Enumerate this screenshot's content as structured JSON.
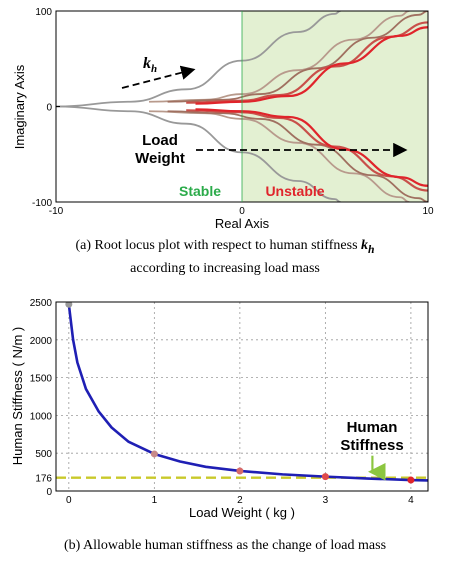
{
  "chart_data": [
    {
      "type": "line",
      "title": "",
      "xlabel": "Real Axis",
      "ylabel": "Imaginary Axis",
      "xlim": [
        -10,
        10
      ],
      "ylim": [
        -100,
        100
      ],
      "x_ticks": [
        "-10",
        "0",
        "10"
      ],
      "y_ticks": [
        "100",
        "0",
        "-100"
      ],
      "regions": [
        {
          "name": "Stable",
          "x_range": [
            -10,
            0
          ],
          "color": "#2bab4a"
        },
        {
          "name": "Unstable",
          "x_range": [
            0,
            10
          ],
          "color": "#e0242b",
          "fill": "#e3f0d2"
        }
      ],
      "annotations": [
        {
          "text": "k",
          "subscript": "h",
          "arrow": "right-up"
        },
        {
          "text_line1": "Load",
          "text_line2": "Weight",
          "arrow": "right"
        }
      ],
      "series": [
        {
          "color": "#999999",
          "points": [
            [
              -10,
              0
            ],
            [
              -6,
              5
            ],
            [
              -3,
              18
            ],
            [
              0,
              48
            ],
            [
              3,
              78
            ],
            [
              5,
              97
            ],
            [
              5.3,
              100
            ]
          ]
        },
        {
          "color": "#999999",
          "points": [
            [
              -10,
              0
            ],
            [
              -6,
              -5
            ],
            [
              -3,
              -18
            ],
            [
              0,
              -48
            ],
            [
              3,
              -78
            ],
            [
              5,
              -97
            ],
            [
              5.3,
              -100
            ]
          ]
        },
        {
          "color": "#b89a8c",
          "points": [
            [
              -5,
              5
            ],
            [
              -2,
              7
            ],
            [
              0,
              13
            ],
            [
              3,
              38
            ],
            [
              6,
              70
            ],
            [
              8.5,
              95
            ],
            [
              9,
              100
            ]
          ]
        },
        {
          "color": "#b89a8c",
          "points": [
            [
              -5,
              -5
            ],
            [
              -2,
              -7
            ],
            [
              0,
              -13
            ],
            [
              3,
              -38
            ],
            [
              6,
              -70
            ],
            [
              8.5,
              -95
            ],
            [
              9,
              -100
            ]
          ]
        },
        {
          "color": "#a07060",
          "points": [
            [
              -4,
              5
            ],
            [
              -1,
              7
            ],
            [
              1,
              13
            ],
            [
              4,
              40
            ],
            [
              7,
              72
            ],
            [
              9.5,
              96
            ],
            [
              10,
              100
            ]
          ]
        },
        {
          "color": "#a07060",
          "points": [
            [
              -4,
              -5
            ],
            [
              -1,
              -7
            ],
            [
              1,
              -13
            ],
            [
              4,
              -40
            ],
            [
              7,
              -72
            ],
            [
              9.5,
              -96
            ],
            [
              10,
              -100
            ]
          ]
        },
        {
          "color": "#c8504a",
          "points": [
            [
              -3,
              4
            ],
            [
              0,
              6
            ],
            [
              2,
              12
            ],
            [
              5,
              42
            ],
            [
              8,
              73
            ],
            [
              10,
              88
            ]
          ]
        },
        {
          "color": "#c8504a",
          "points": [
            [
              -3,
              -4
            ],
            [
              0,
              -6
            ],
            [
              2,
              -12
            ],
            [
              5,
              -42
            ],
            [
              8,
              -73
            ],
            [
              10,
              -88
            ]
          ]
        },
        {
          "color": "#e0242b",
          "points": [
            [
              -2.5,
              3
            ],
            [
              0,
              5
            ],
            [
              2.5,
              11
            ],
            [
              5.5,
              45
            ],
            [
              8.5,
              74
            ],
            [
              10,
              83
            ]
          ]
        },
        {
          "color": "#e0242b",
          "points": [
            [
              -2.5,
              -3
            ],
            [
              0,
              -5
            ],
            [
              2.5,
              -11
            ],
            [
              5.5,
              -45
            ],
            [
              8.5,
              -74
            ],
            [
              10,
              -83
            ]
          ]
        }
      ]
    },
    {
      "type": "line",
      "title": "",
      "xlabel": "Load Weight ( kg )",
      "ylabel": "Human Stiffness ( N/m )",
      "xlim": [
        -0.15,
        4.2
      ],
      "ylim": [
        0,
        2500
      ],
      "x_ticks": [
        0,
        1,
        2,
        3,
        4
      ],
      "y_ticks": [
        0,
        176,
        500,
        1000,
        1500,
        2000,
        2500
      ],
      "grid": true,
      "threshold": {
        "y": 176,
        "color": "#c9c92a"
      },
      "annotation": {
        "text_line1": "Human",
        "text_line2": "Stiffness",
        "x": 3.55
      },
      "series": [
        {
          "color": "#1f1fb4",
          "points": [
            [
              0,
              2470
            ],
            [
              0.05,
              2000
            ],
            [
              0.1,
              1700
            ],
            [
              0.2,
              1350
            ],
            [
              0.35,
              1050
            ],
            [
              0.5,
              840
            ],
            [
              0.7,
              650
            ],
            [
              1,
              490
            ],
            [
              1.3,
              390
            ],
            [
              1.6,
              320
            ],
            [
              2,
              265
            ],
            [
              2.5,
              220
            ],
            [
              3,
              190
            ],
            [
              3.5,
              165
            ],
            [
              4,
              145
            ],
            [
              4.2,
              140
            ]
          ]
        }
      ],
      "markers": [
        {
          "x": 0,
          "y": 2470,
          "color": "#999999"
        },
        {
          "x": 1,
          "y": 490,
          "color": "#c88a8a"
        },
        {
          "x": 2,
          "y": 265,
          "color": "#d86a6a"
        },
        {
          "x": 3,
          "y": 190,
          "color": "#e04a4a"
        },
        {
          "x": 4,
          "y": 145,
          "color": "#e0242b"
        }
      ]
    }
  ],
  "captions": {
    "a_text": "(a) Root locus plot with respect to human stiffness",
    "a_symbol": "k",
    "a_subscript": "h",
    "a_line2": "according to increasing load mass",
    "b_text": "(b) Allowable human stiffness as the change of load mass"
  }
}
